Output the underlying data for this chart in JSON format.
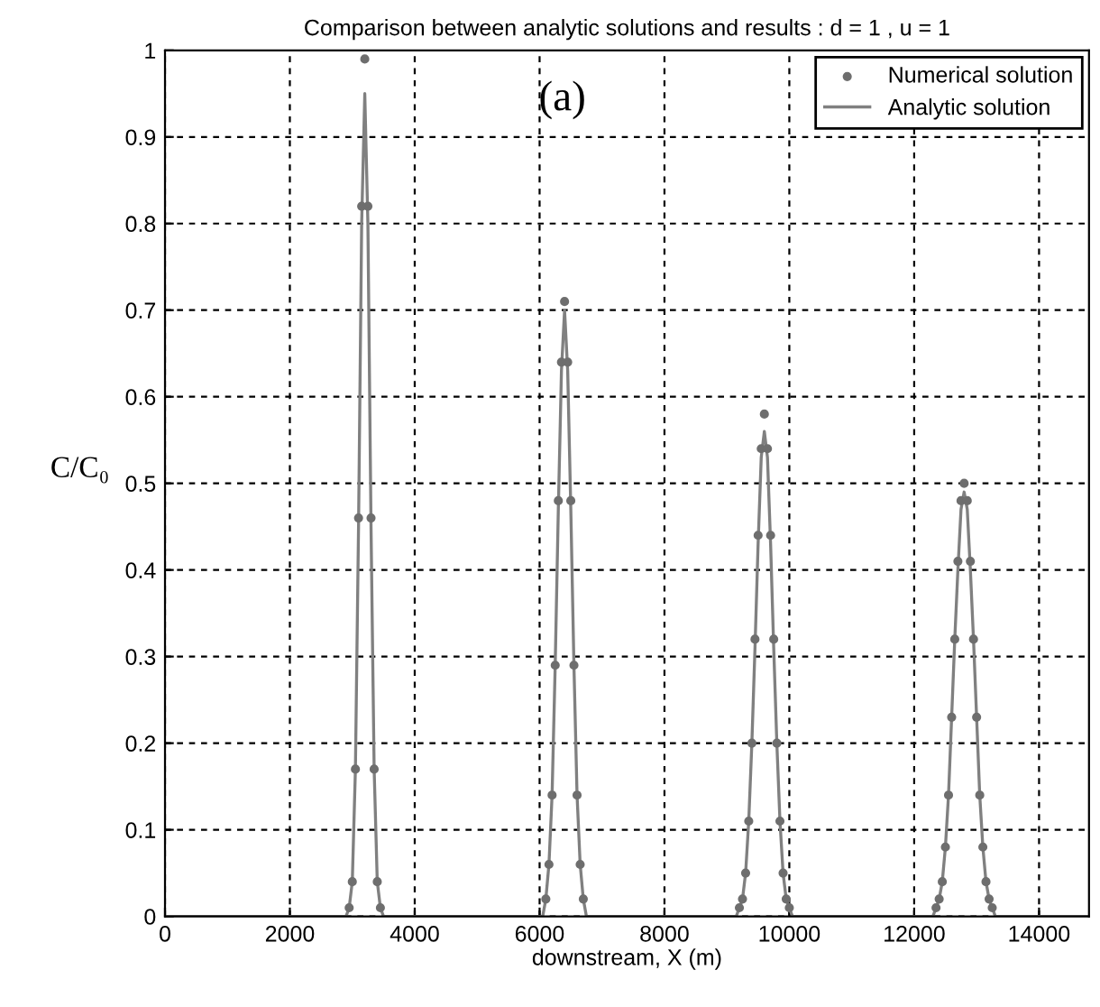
{
  "chart_data": {
    "type": "line",
    "title": "Comparison between analytic solutions and results : d = 1 , u = 1",
    "xlabel": "downstream, X (m)",
    "ylabel": "C/C₀",
    "annotations": [
      "(a)"
    ],
    "xlim": [
      0,
      14800
    ],
    "xticks": [
      0,
      2000,
      4000,
      6000,
      8000,
      10000,
      12000,
      14000
    ],
    "ylim": [
      0,
      1
    ],
    "yticks": [
      0,
      0.1,
      0.2,
      0.3,
      0.4,
      0.5,
      0.6,
      0.7,
      0.8,
      0.9,
      1
    ],
    "grid": true,
    "legend": "top right",
    "series": [
      {
        "name": "Numerical solution",
        "type": "scatter",
        "marker": "circle",
        "color": "#6e6e6e",
        "x": [
          2950,
          3000,
          3050,
          3100,
          3150,
          3200,
          3250,
          3300,
          3350,
          3400,
          3450,
          6100,
          6150,
          6200,
          6250,
          6300,
          6350,
          6400,
          6450,
          6500,
          6550,
          6600,
          6650,
          6700,
          9200,
          9250,
          9300,
          9350,
          9400,
          9450,
          9500,
          9550,
          9600,
          9650,
          9700,
          9750,
          9800,
          9850,
          9900,
          9950,
          10000,
          12350,
          12400,
          12450,
          12500,
          12550,
          12600,
          12650,
          12700,
          12750,
          12800,
          12850,
          12900,
          12950,
          13000,
          13050,
          13100,
          13150,
          13200,
          13250
        ],
        "values": [
          0.01,
          0.04,
          0.17,
          0.46,
          0.82,
          0.99,
          0.82,
          0.46,
          0.17,
          0.04,
          0.01,
          0.02,
          0.06,
          0.14,
          0.29,
          0.48,
          0.64,
          0.71,
          0.64,
          0.48,
          0.29,
          0.14,
          0.06,
          0.02,
          0.01,
          0.02,
          0.05,
          0.11,
          0.2,
          0.32,
          0.44,
          0.54,
          0.58,
          0.54,
          0.44,
          0.32,
          0.2,
          0.11,
          0.05,
          0.02,
          0.01,
          0.01,
          0.02,
          0.04,
          0.08,
          0.14,
          0.23,
          0.32,
          0.41,
          0.48,
          0.5,
          0.48,
          0.41,
          0.32,
          0.23,
          0.14,
          0.08,
          0.04,
          0.02,
          0.01
        ]
      },
      {
        "name": "Analytic solution",
        "marker": "none",
        "line_style": "solid",
        "color": "#808080",
        "x": [
          0,
          2900,
          2950,
          3000,
          3050,
          3100,
          3150,
          3200,
          3250,
          3300,
          3350,
          3400,
          3450,
          3500,
          6050,
          6100,
          6150,
          6200,
          6250,
          6300,
          6350,
          6400,
          6450,
          6500,
          6550,
          6600,
          6650,
          6700,
          6750,
          9150,
          9200,
          9250,
          9300,
          9350,
          9400,
          9450,
          9500,
          9550,
          9600,
          9650,
          9700,
          9750,
          9800,
          9850,
          9900,
          9950,
          10000,
          10050,
          12300,
          12350,
          12400,
          12450,
          12500,
          12550,
          12600,
          12650,
          12700,
          12750,
          12800,
          12850,
          12900,
          12950,
          13000,
          13050,
          13100,
          13150,
          13200,
          13250,
          13300,
          14800
        ],
        "values": [
          0,
          0,
          0.01,
          0.04,
          0.17,
          0.45,
          0.8,
          0.95,
          0.8,
          0.45,
          0.17,
          0.04,
          0.01,
          0,
          0,
          0.02,
          0.06,
          0.14,
          0.29,
          0.47,
          0.63,
          0.7,
          0.63,
          0.47,
          0.29,
          0.14,
          0.06,
          0.02,
          0,
          0,
          0.01,
          0.02,
          0.05,
          0.11,
          0.2,
          0.31,
          0.43,
          0.53,
          0.56,
          0.53,
          0.43,
          0.31,
          0.2,
          0.11,
          0.05,
          0.02,
          0.01,
          0,
          0,
          0.01,
          0.02,
          0.04,
          0.08,
          0.14,
          0.23,
          0.32,
          0.4,
          0.47,
          0.49,
          0.47,
          0.4,
          0.32,
          0.23,
          0.14,
          0.08,
          0.04,
          0.02,
          0.01,
          0,
          0
        ]
      }
    ]
  }
}
